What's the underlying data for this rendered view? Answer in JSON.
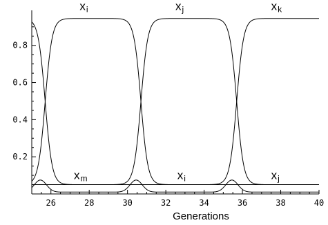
{
  "chart_data": {
    "type": "line",
    "xlabel": "Generations",
    "ylabel": "",
    "xlim": [
      25,
      40
    ],
    "ylim": [
      0,
      0.97
    ],
    "x_ticks": [
      26,
      28,
      30,
      32,
      34,
      36,
      38,
      40
    ],
    "y_ticks": [
      0.2,
      0.4,
      0.6,
      0.8
    ],
    "x_tick_labels": [
      "26",
      "28",
      "30",
      "32",
      "34",
      "36",
      "38",
      "40"
    ],
    "y_tick_labels": [
      "0.2",
      "0.4",
      "0.6",
      "0.8"
    ],
    "grid": false,
    "high_level": 0.945,
    "low_level": 0.05,
    "transitions": [
      25.7,
      30.7,
      35.7
    ],
    "curve_labels": [
      {
        "base": "x",
        "sub": "i",
        "x": 27.5,
        "y": 0.99
      },
      {
        "base": "x",
        "sub": "j",
        "x": 32.5,
        "y": 0.99
      },
      {
        "base": "x",
        "sub": "k",
        "x": 37.5,
        "y": 0.99
      },
      {
        "base": "x",
        "sub": "m",
        "x": 27.2,
        "y": 0.08
      },
      {
        "base": "x",
        "sub": "i",
        "x": 32.6,
        "y": 0.08
      },
      {
        "base": "x",
        "sub": "j",
        "x": 37.5,
        "y": 0.08
      }
    ]
  }
}
